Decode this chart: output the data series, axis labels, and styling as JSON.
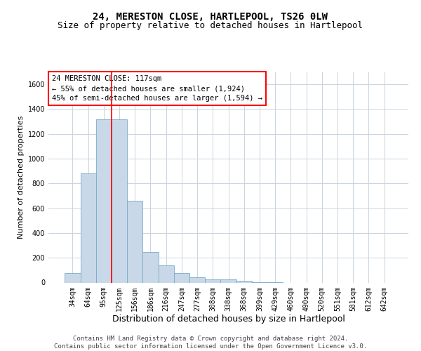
{
  "title_line1": "24, MERESTON CLOSE, HARTLEPOOL, TS26 0LW",
  "title_line2": "Size of property relative to detached houses in Hartlepool",
  "xlabel": "Distribution of detached houses by size in Hartlepool",
  "ylabel": "Number of detached properties",
  "bar_color": "#c8d8e8",
  "bar_edge_color": "#7aaac8",
  "categories": [
    "34sqm",
    "64sqm",
    "95sqm",
    "125sqm",
    "156sqm",
    "186sqm",
    "216sqm",
    "247sqm",
    "277sqm",
    "308sqm",
    "338sqm",
    "368sqm",
    "399sqm",
    "429sqm",
    "460sqm",
    "490sqm",
    "520sqm",
    "551sqm",
    "581sqm",
    "612sqm",
    "642sqm"
  ],
  "values": [
    75,
    880,
    1320,
    1320,
    660,
    245,
    140,
    75,
    40,
    25,
    25,
    15,
    5,
    5,
    0,
    0,
    0,
    0,
    0,
    0,
    0
  ],
  "ylim": [
    0,
    1700
  ],
  "yticks": [
    0,
    200,
    400,
    600,
    800,
    1000,
    1200,
    1400,
    1600
  ],
  "vline_x": 2.5,
  "annotation_line1": "24 MERESTON CLOSE: 117sqm",
  "annotation_line2": "← 55% of detached houses are smaller (1,924)",
  "annotation_line3": "45% of semi-detached houses are larger (1,594) →",
  "annotation_box_color": "white",
  "annotation_box_edge_color": "red",
  "vline_color": "red",
  "grid_color": "#c8d4e0",
  "background_color": "white",
  "footer_text": "Contains HM Land Registry data © Crown copyright and database right 2024.\nContains public sector information licensed under the Open Government Licence v3.0.",
  "title_fontsize": 10,
  "subtitle_fontsize": 9,
  "xlabel_fontsize": 9,
  "ylabel_fontsize": 8,
  "annotation_fontsize": 7.5,
  "footer_fontsize": 6.5,
  "tick_fontsize": 7
}
